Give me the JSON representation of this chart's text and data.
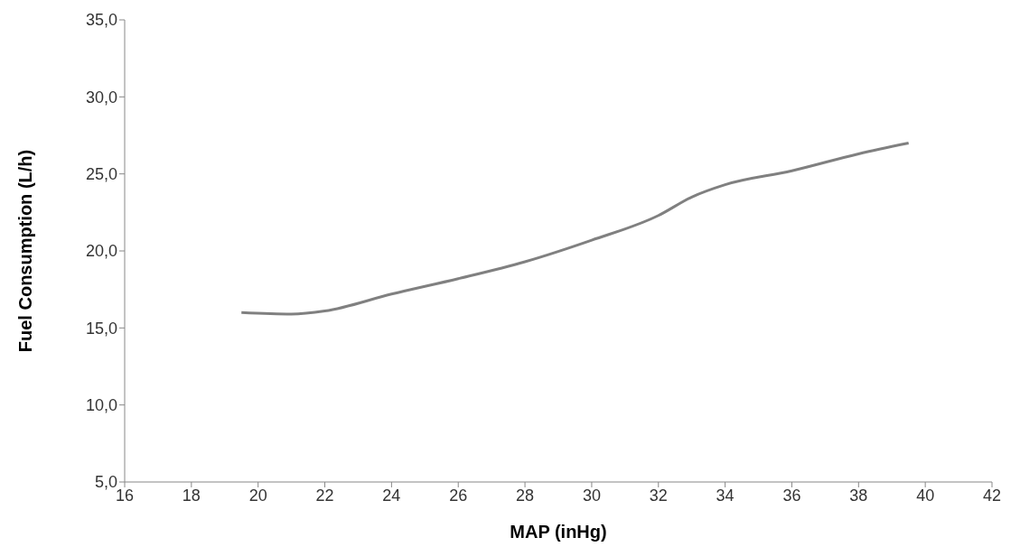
{
  "chart_data": {
    "type": "line",
    "xlabel": "MAP (inHg)",
    "ylabel": "Fuel Consumption (L/h)",
    "x": [
      19.5,
      21,
      22,
      24,
      26,
      28,
      30,
      32,
      33,
      34,
      36,
      38,
      39.5
    ],
    "series": [
      {
        "color": "#808080",
        "values": [
          16.0,
          15.9,
          16.1,
          17.2,
          18.2,
          19.3,
          20.7,
          22.3,
          23.5,
          24.3,
          25.2,
          26.3,
          27.0
        ]
      }
    ],
    "xlim": [
      16,
      42
    ],
    "xticks": [
      16,
      18,
      20,
      22,
      24,
      26,
      28,
      30,
      32,
      34,
      36,
      38,
      40,
      42
    ],
    "ylim": [
      5,
      35
    ],
    "yticks": [
      {
        "value": 5,
        "label": "5,0"
      },
      {
        "value": 10,
        "label": "10,0"
      },
      {
        "value": 15,
        "label": "15,0"
      },
      {
        "value": 20,
        "label": "20,0"
      },
      {
        "value": 25,
        "label": "25,0"
      },
      {
        "value": 30,
        "label": "30,0"
      },
      {
        "value": 35,
        "label": "35,0"
      }
    ],
    "grid": false,
    "legend": false,
    "marker": "none",
    "line_style": "solid"
  }
}
